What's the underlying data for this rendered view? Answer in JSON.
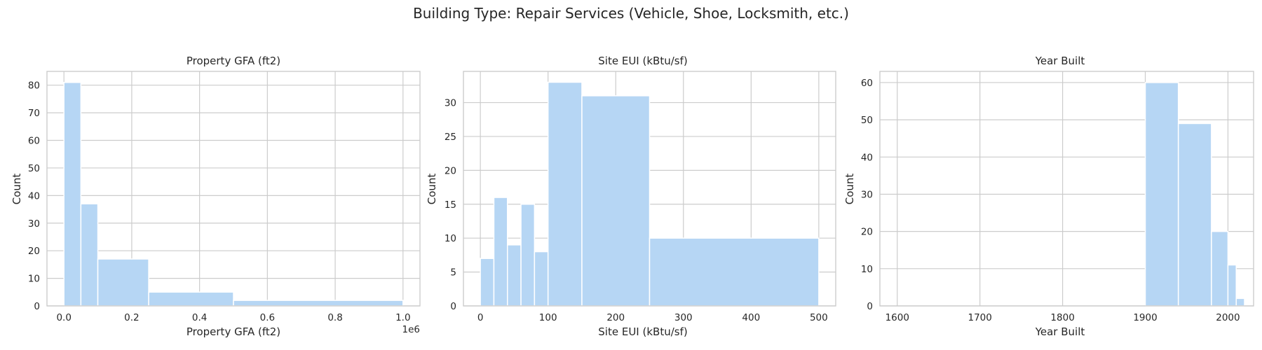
{
  "figure_title": "Building Type: Repair Services (Vehicle, Shoe, Locksmith, etc.)",
  "colors": {
    "bar": "#b6d6f4",
    "grid": "#cccccc",
    "text": "#262626"
  },
  "chart_data": [
    {
      "type": "bar",
      "title": "Property GFA (ft2)",
      "xlabel": "Property GFA (ft2)",
      "ylabel": "Count",
      "x_offset_text": "1e6",
      "xlim": [
        -0.05,
        1.05
      ],
      "ylim": [
        0,
        85
      ],
      "xticks": [
        0.0,
        0.2,
        0.4,
        0.6,
        0.8,
        1.0
      ],
      "xtick_labels": [
        "0.0",
        "0.2",
        "0.4",
        "0.6",
        "0.8",
        "1.0"
      ],
      "yticks": [
        0,
        10,
        20,
        30,
        40,
        50,
        60,
        70,
        80
      ],
      "grid": true,
      "bins": [
        {
          "x0": 0.0,
          "x1": 0.05,
          "count": 81
        },
        {
          "x0": 0.05,
          "x1": 0.1,
          "count": 37
        },
        {
          "x0": 0.1,
          "x1": 0.25,
          "count": 17
        },
        {
          "x0": 0.25,
          "x1": 0.5,
          "count": 5
        },
        {
          "x0": 0.5,
          "x1": 1.0,
          "count": 2
        }
      ]
    },
    {
      "type": "bar",
      "title": "Site EUI (kBtu/sf)",
      "xlabel": "Site EUI (kBtu/sf)",
      "ylabel": "Count",
      "xlim": [
        -25,
        525
      ],
      "ylim": [
        0,
        34.6
      ],
      "xticks": [
        0,
        100,
        200,
        300,
        400,
        500
      ],
      "xtick_labels": [
        "0",
        "100",
        "200",
        "300",
        "400",
        "500"
      ],
      "yticks": [
        0,
        5,
        10,
        15,
        20,
        25,
        30
      ],
      "grid": true,
      "bins": [
        {
          "x0": 0,
          "x1": 20,
          "count": 7
        },
        {
          "x0": 20,
          "x1": 40,
          "count": 16
        },
        {
          "x0": 40,
          "x1": 60,
          "count": 9
        },
        {
          "x0": 60,
          "x1": 80,
          "count": 15
        },
        {
          "x0": 80,
          "x1": 100,
          "count": 8
        },
        {
          "x0": 100,
          "x1": 150,
          "count": 33
        },
        {
          "x0": 150,
          "x1": 250,
          "count": 31
        },
        {
          "x0": 250,
          "x1": 500,
          "count": 10
        }
      ]
    },
    {
      "type": "bar",
      "title": "Year Built",
      "xlabel": "Year Built",
      "ylabel": "Count",
      "xlim": [
        1579,
        2031
      ],
      "ylim": [
        0,
        63
      ],
      "xticks": [
        1600,
        1700,
        1800,
        1900,
        2000
      ],
      "xtick_labels": [
        "1600",
        "1700",
        "1800",
        "1900",
        "2000"
      ],
      "yticks": [
        0,
        10,
        20,
        30,
        40,
        50,
        60
      ],
      "grid": true,
      "bins": [
        {
          "x0": 1900,
          "x1": 1940,
          "count": 60
        },
        {
          "x0": 1940,
          "x1": 1980,
          "count": 49
        },
        {
          "x0": 1980,
          "x1": 2000,
          "count": 20
        },
        {
          "x0": 2000,
          "x1": 2010,
          "count": 11
        },
        {
          "x0": 2010,
          "x1": 2020,
          "count": 2
        }
      ]
    }
  ]
}
